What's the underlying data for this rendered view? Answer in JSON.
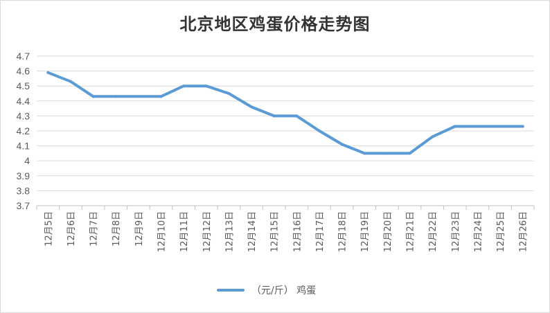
{
  "chart_data": {
    "type": "line",
    "title": "北京地区鸡蛋价格走势图",
    "xlabel": "",
    "ylabel": "",
    "categories": [
      "12月5日",
      "12月6日",
      "12月7日",
      "12月8日",
      "12月9日",
      "12月10日",
      "12月11日",
      "12月12日",
      "12月13日",
      "12月14日",
      "12月15日",
      "12月16日",
      "12月17日",
      "12月18日",
      "12月19日",
      "12月20日",
      "12月21日",
      "12月22日",
      "12月23日",
      "12月24日",
      "12月25日",
      "12月26日"
    ],
    "series": [
      {
        "name": "（元/斤） 鸡蛋",
        "color": "#5b9bd5",
        "values": [
          4.59,
          4.53,
          4.43,
          4.43,
          4.43,
          4.43,
          4.5,
          4.5,
          4.45,
          4.36,
          4.3,
          4.3,
          4.2,
          4.11,
          4.05,
          4.05,
          4.05,
          4.16,
          4.23,
          4.23,
          4.23,
          4.23
        ]
      }
    ],
    "ylim": [
      3.7,
      4.7
    ],
    "yticks": [
      "3.7",
      "3.8",
      "3.9",
      "4",
      "4.1",
      "4.2",
      "4.3",
      "4.4",
      "4.5",
      "4.6",
      "4.7"
    ],
    "grid": "horizontal",
    "legend": "bottom-center"
  }
}
